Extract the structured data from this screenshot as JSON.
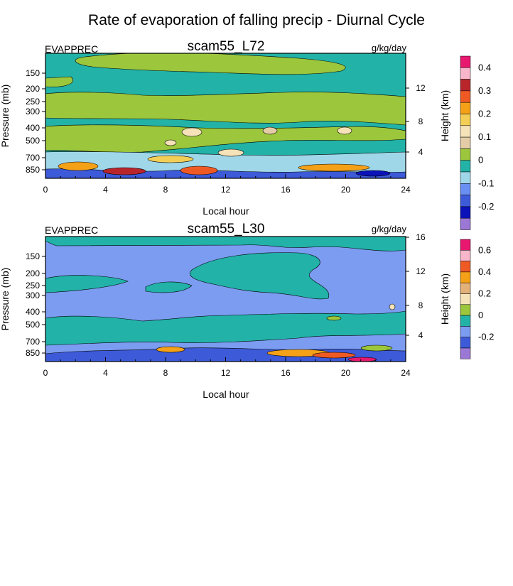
{
  "figure": {
    "title": "Rate of evaporation of falling precip - Diurnal Cycle"
  },
  "chart_data": [
    {
      "type": "heatmap",
      "title": "scam55_L72",
      "variable": "EVAPPREC",
      "units": "g/kg/day",
      "xlabel": "Local hour",
      "ylabel": "Pressure (mb)",
      "ylabel_right": "Height (km)",
      "xlim": [
        0,
        24
      ],
      "x_ticks": [
        "0",
        "4",
        "8",
        "12",
        "16",
        "20",
        "24"
      ],
      "y_ticks": [
        "150",
        "200",
        "250",
        "300",
        "400",
        "500",
        "700",
        "850"
      ],
      "y_ticks_right": [
        "4",
        "8",
        "12"
      ],
      "colorbar": {
        "labels": [
          "0.4",
          "0.3",
          "0.2",
          "0.1",
          "0",
          "-0.1",
          "-0.2"
        ],
        "colors": [
          "#e8176f",
          "#f9b6ca",
          "#b8262c",
          "#ef5a24",
          "#f5a118",
          "#f2ce57",
          "#f5e2b8",
          "#e4cda6",
          "#9cc63b",
          "#22b2a8",
          "#9fd7e9",
          "#6a8ff2",
          "#3d5ad8",
          "#0a12b8",
          "#9b77d6"
        ]
      },
      "regions": [
        {
          "level": "0 to 0.025",
          "color": "#22b2a8",
          "extent": "background over full domain"
        },
        {
          "level": "0.025 to 0.05",
          "color": "#9cc63b",
          "extent": "broad bands near 200-300 mb and 400-500 mb, patchy near 150 mb"
        },
        {
          "level": "-0.1 to 0",
          "color": "#9fd7e9",
          "extent": "layer near 700-850 mb"
        },
        {
          "level": "0.05 to 0.15",
          "color": "#f5e2b8",
          "extent": "isolated cells near 400-500 mb around hours 8-10, 14, 20"
        },
        {
          "level": "0.2 to 0.4 and -0.2",
          "color": "#f5a118",
          "extent": "near-surface cells below 850 mb"
        }
      ]
    },
    {
      "type": "heatmap",
      "title": "scam55_L30",
      "variable": "EVAPPREC",
      "units": "g/kg/day",
      "xlabel": "Local hour",
      "ylabel": "Pressure (mb)",
      "ylabel_right": "Height (km)",
      "xlim": [
        0,
        24
      ],
      "x_ticks": [
        "0",
        "4",
        "8",
        "12",
        "16",
        "20",
        "24"
      ],
      "y_ticks": [
        "150",
        "200",
        "250",
        "300",
        "400",
        "500",
        "700",
        "850"
      ],
      "y_ticks_right": [
        "4",
        "8",
        "12",
        "16"
      ],
      "colorbar": {
        "labels": [
          "0.6",
          "0.4",
          "0.2",
          "0",
          "-0.2"
        ],
        "colors": [
          "#e8176f",
          "#f9b6ca",
          "#ef5a24",
          "#f5a118",
          "#e4b07a",
          "#f5e2b8",
          "#9cc63b",
          "#22b2a8",
          "#7b9cf0",
          "#3d5ad8",
          "#9b77d6"
        ]
      },
      "regions": [
        {
          "level": "-0.1 to 0",
          "color": "#7b9cf0",
          "extent": "background over full domain"
        },
        {
          "level": "0 to 0.1",
          "color": "#22b2a8",
          "extent": "bands near 200-300 mb (hours 12-18), 400-500 mb, and above 150 mb"
        },
        {
          "level": "-0.2 to -0.1",
          "color": "#3d5ad8",
          "extent": "near-surface layer below 850 mb"
        },
        {
          "level": "0.1 to 0.6",
          "color": "#f5a118",
          "extent": "near-surface cells around hours 16-22"
        }
      ]
    }
  ]
}
